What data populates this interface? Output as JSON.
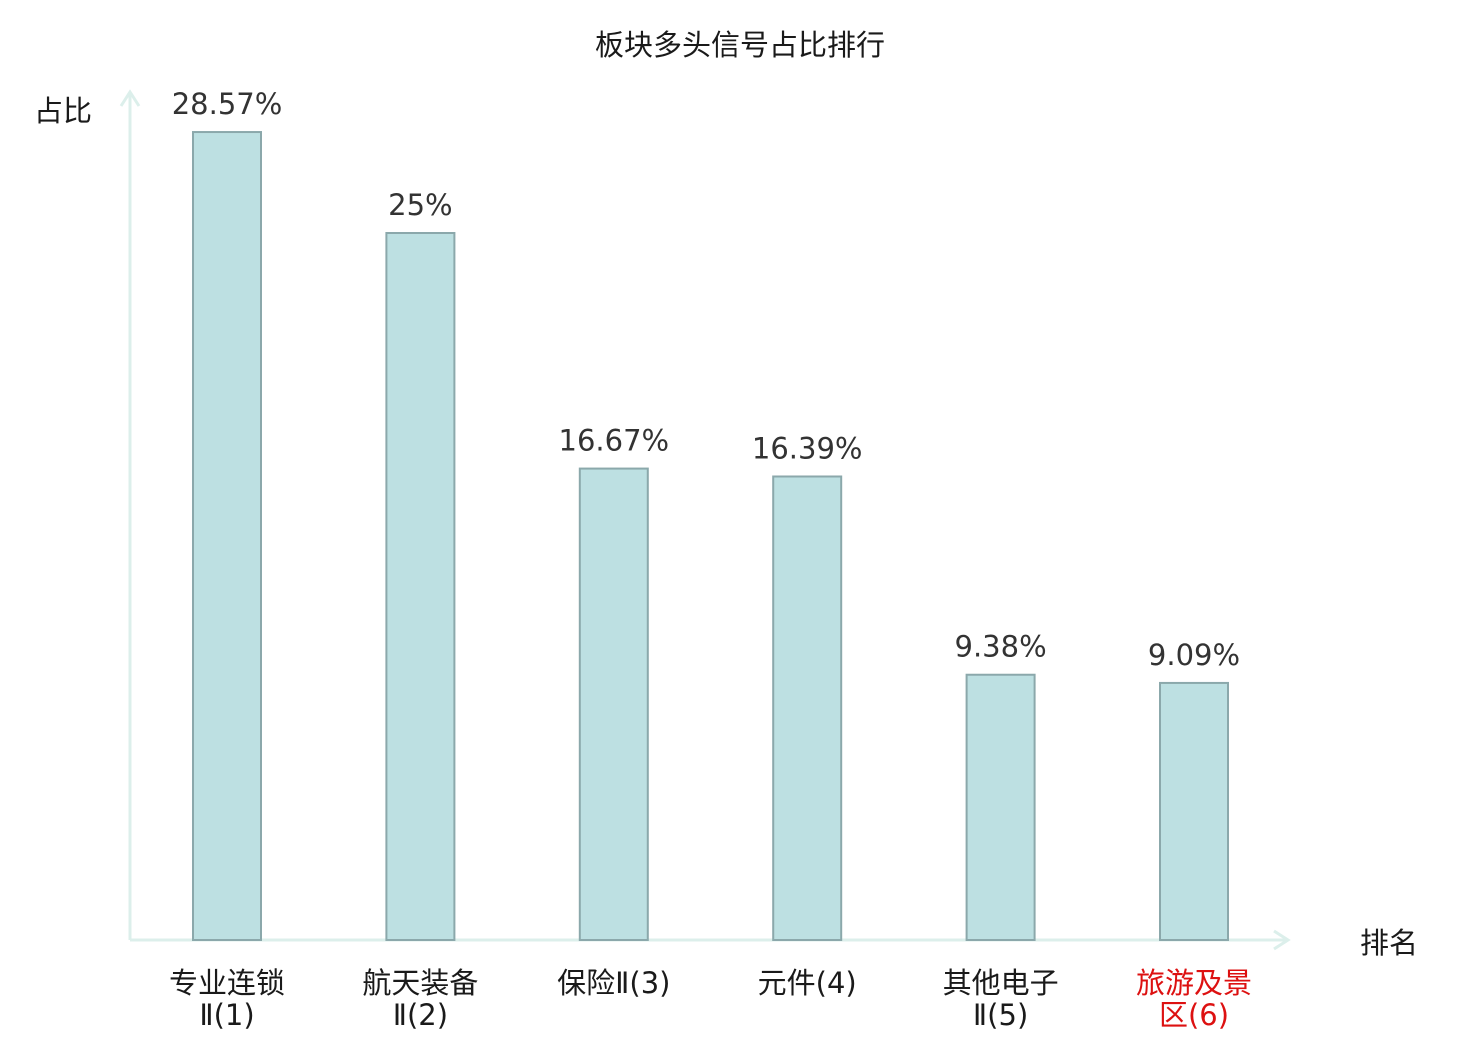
{
  "chart_data": {
    "type": "bar",
    "title": "板块多头信号占比排行",
    "ylabel": "占比",
    "xlabel": "排名",
    "ylim": [
      0,
      30
    ],
    "grid": false,
    "categories": [
      [
        "专业连锁",
        "Ⅱ(1)"
      ],
      [
        "航天装备",
        "Ⅱ(2)"
      ],
      [
        "保险Ⅱ(3)"
      ],
      [
        "元件(4)"
      ],
      [
        "其他电子",
        "Ⅱ(5)"
      ],
      [
        "旅游及景",
        "区(6)"
      ]
    ],
    "values": [
      28.57,
      25,
      16.67,
      16.39,
      9.38,
      9.09
    ],
    "data_labels": [
      "28.57%",
      "25%",
      "16.67%",
      "16.39%",
      "9.38%",
      "9.09%"
    ],
    "highlight_index": 5
  },
  "colors": {
    "bar_fill": "#bde0e2",
    "bar_stroke": "#8ba8ab",
    "axis": "#dcefeb",
    "label_text": "#333333",
    "highlight_text": "#dd1111"
  }
}
